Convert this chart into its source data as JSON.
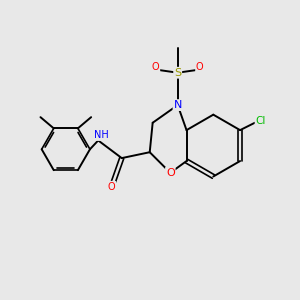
{
  "bg_color": "#e8e8e8",
  "bond_color": "#000000",
  "atom_colors": {
    "N": "#0000ff",
    "O": "#ff0000",
    "S": "#999900",
    "Cl": "#00bb00",
    "C": "#000000",
    "H": "#555555"
  },
  "figsize": [
    3.0,
    3.0
  ],
  "dpi": 100,
  "lw": 1.4,
  "dlw": 1.2,
  "fontsize": 7.0
}
